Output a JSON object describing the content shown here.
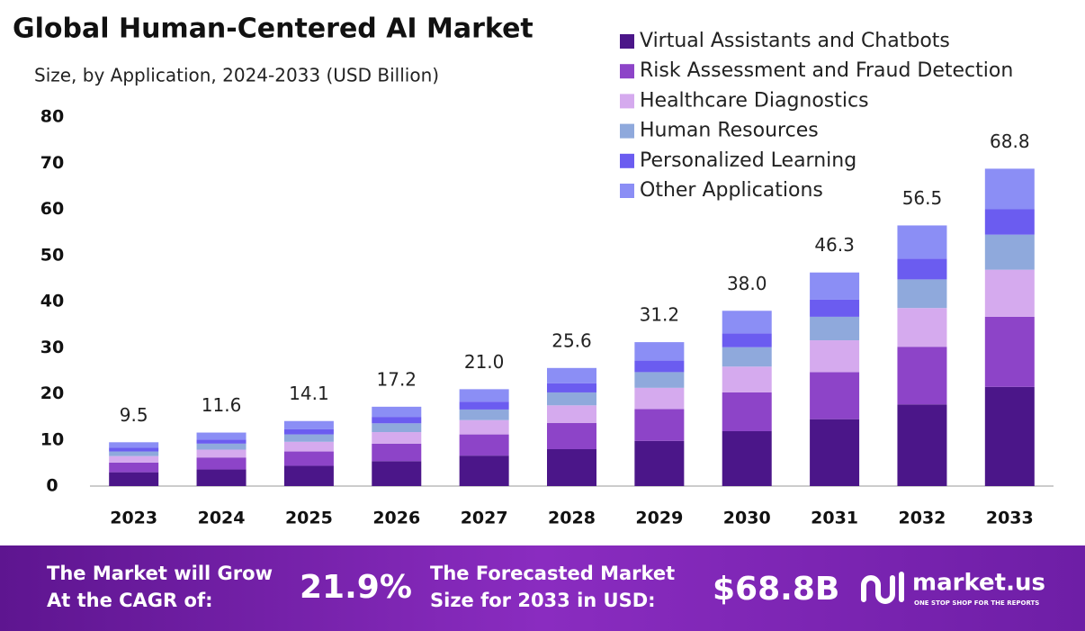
{
  "chart_data": {
    "type": "stacked_bar",
    "title": "Global Human-Centered AI Market",
    "subtitle": "Size, by Application, 2024-2033 (USD Billion)",
    "categories": [
      "2023",
      "2024",
      "2025",
      "2026",
      "2027",
      "2028",
      "2029",
      "2030",
      "2031",
      "2032",
      "2033"
    ],
    "series": [
      {
        "name": "Virtual Assistants and Chatbots",
        "color": "#4b1689",
        "values": [
          3.0,
          3.6,
          4.4,
          5.4,
          6.6,
          8.0,
          9.8,
          11.9,
          14.5,
          17.7,
          21.5
        ]
      },
      {
        "name": "Risk Assessment and Fraud Detection",
        "color": "#8d44c8",
        "values": [
          2.1,
          2.6,
          3.1,
          3.8,
          4.6,
          5.7,
          6.9,
          8.4,
          10.2,
          12.5,
          15.2
        ]
      },
      {
        "name": "Healthcare Diagnostics",
        "color": "#d5aaee",
        "values": [
          1.4,
          1.7,
          2.1,
          2.5,
          3.1,
          3.8,
          4.6,
          5.6,
          6.9,
          8.4,
          10.2
        ]
      },
      {
        "name": "Human Resources",
        "color": "#8fa9dc",
        "values": [
          1.0,
          1.3,
          1.6,
          1.9,
          2.3,
          2.8,
          3.4,
          4.2,
          5.1,
          6.2,
          7.6
        ]
      },
      {
        "name": "Personalized Learning",
        "color": "#6b5cf0",
        "values": [
          0.8,
          0.9,
          1.1,
          1.4,
          1.7,
          2.0,
          2.5,
          3.0,
          3.7,
          4.5,
          5.5
        ]
      },
      {
        "name": "Other Applications",
        "color": "#8b8ef5",
        "values": [
          1.2,
          1.5,
          1.8,
          2.2,
          2.7,
          3.3,
          4.0,
          4.9,
          5.9,
          7.2,
          8.8
        ]
      }
    ],
    "totals": [
      9.5,
      11.6,
      14.1,
      17.2,
      {
        "value": 21.0,
        "label": "21.0"
      },
      25.6,
      31.2,
      {
        "value": 38.0,
        "label": "38.0"
      },
      46.3,
      56.5,
      68.8
    ],
    "ylim": [
      0,
      80
    ],
    "yticks": [
      0,
      10,
      20,
      30,
      40,
      50,
      60,
      70,
      80
    ],
    "grid": false
  },
  "footer": {
    "cagr_text": [
      "The Market will Grow",
      "At the CAGR of:"
    ],
    "cagr": "21.9%",
    "forecast_text": [
      "The Forecasted Market",
      "Size for 2033 in USD:"
    ],
    "forecast": "$68.8B",
    "brand": "market.us",
    "tagline": "ONE STOP SHOP FOR THE REPORTS"
  }
}
